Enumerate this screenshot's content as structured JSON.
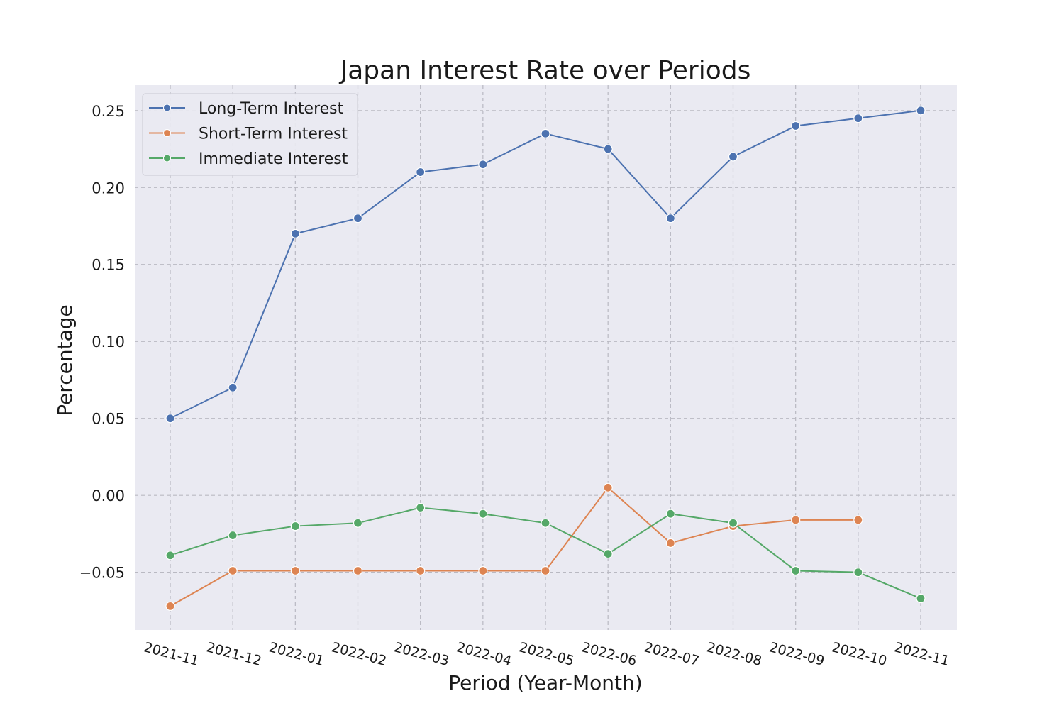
{
  "chart_data": {
    "type": "line",
    "title": "Japan Interest Rate over Periods",
    "xlabel": "Period (Year-Month)",
    "ylabel": "Percentage",
    "categories": [
      "2021-11",
      "2021-12",
      "2022-01",
      "2022-02",
      "2022-03",
      "2022-04",
      "2022-05",
      "2022-06",
      "2022-07",
      "2022-08",
      "2022-09",
      "2022-10",
      "2022-11"
    ],
    "y_ticks": [
      "−0.05",
      "0.00",
      "0.05",
      "0.10",
      "0.15",
      "0.20",
      "0.25"
    ],
    "y_tick_values": [
      -0.05,
      0.0,
      0.05,
      0.1,
      0.15,
      0.2,
      0.25
    ],
    "ylim": [
      -0.0875,
      0.2665
    ],
    "grid": true,
    "legend_position": "top-left",
    "series": [
      {
        "name": "Long-Term Interest",
        "color": "#4c72b0",
        "values": [
          0.05,
          0.07,
          0.17,
          0.18,
          0.21,
          0.215,
          0.235,
          0.225,
          0.18,
          0.22,
          0.24,
          0.245,
          0.25
        ]
      },
      {
        "name": "Short-Term Interest",
        "color": "#dd8452",
        "values": [
          -0.072,
          -0.049,
          -0.049,
          -0.049,
          -0.049,
          -0.049,
          -0.049,
          0.005,
          -0.031,
          -0.02,
          -0.016,
          -0.016,
          null
        ]
      },
      {
        "name": "Immediate Interest",
        "color": "#55a868",
        "values": [
          -0.039,
          -0.026,
          -0.02,
          -0.018,
          -0.008,
          -0.012,
          -0.018,
          -0.038,
          -0.012,
          -0.018,
          -0.049,
          -0.05,
          -0.067
        ]
      }
    ]
  }
}
